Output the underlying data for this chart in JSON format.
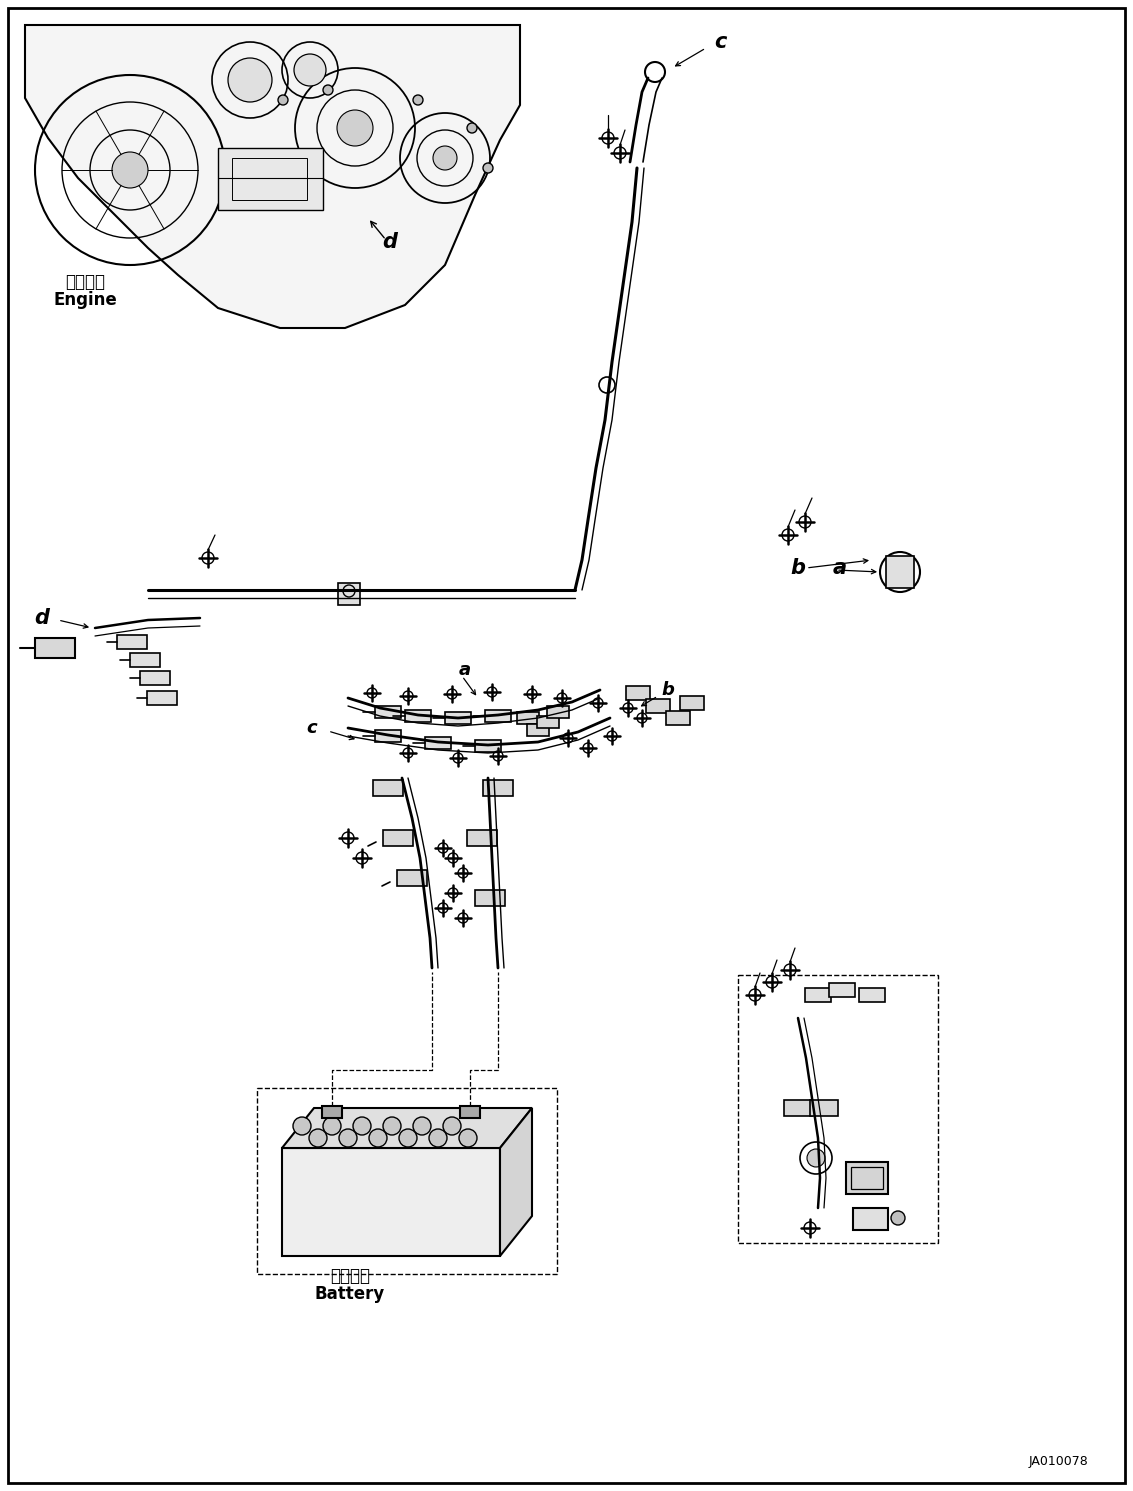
{
  "background_color": "#ffffff",
  "engine_label_jp": "エンジン",
  "engine_label_en": "Engine",
  "battery_label_jp": "バッテリ",
  "battery_label_en": "Battery",
  "doc_number": "JA010078"
}
